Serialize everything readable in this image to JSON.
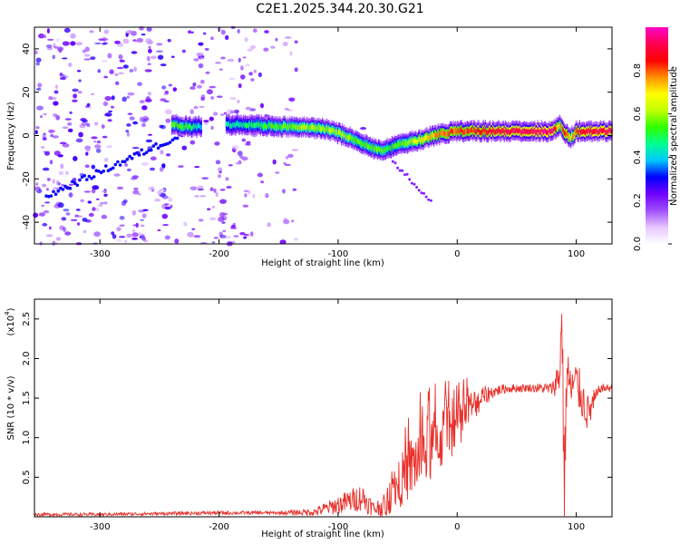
{
  "title": "C2E1.2025.344.20.30.G21",
  "chart_data": [
    {
      "type": "heatmap",
      "name": "spectrogram",
      "xlabel": "Height of straight line (km)",
      "ylabel": "Frequency (Hz)",
      "xlim": [
        -355,
        130
      ],
      "ylim": [
        -50,
        50
      ],
      "xticks": [
        -300,
        -200,
        -100,
        0,
        100
      ],
      "xtick_labels": [
        "-300",
        "-200",
        "-100",
        "0",
        "100"
      ],
      "yticks": [
        -40,
        -20,
        0,
        20,
        40
      ],
      "ytick_labels": [
        "-40",
        "-20",
        "0",
        "20",
        "40"
      ],
      "colorbar": {
        "label": "Normalized spectral amplitude",
        "range": [
          0,
          1
        ],
        "ticks": [
          0.0,
          0.2,
          0.4,
          0.6,
          0.8
        ],
        "tick_labels": [
          "0.0",
          "0.2",
          "0.4",
          "0.6",
          "0.8"
        ],
        "colors": [
          "#ffffff",
          "#e6c6ff",
          "#a050ff",
          "#7000ff",
          "#0000ff",
          "#00c8ff",
          "#00ff90",
          "#30ff00",
          "#c0ff00",
          "#ffff00",
          "#ff9000",
          "#ff0000",
          "#ff0050",
          "#ff00c8"
        ]
      },
      "ridge": {
        "x": [
          -240,
          -225,
          -210,
          -190,
          -170,
          -150,
          -130,
          -110,
          -95,
          -85,
          -75,
          -65,
          -58,
          -50,
          -40,
          -30,
          -20,
          -10,
          0,
          10,
          20,
          40,
          60,
          80,
          85,
          90,
          95,
          100,
          110,
          120,
          130
        ],
        "y": [
          5,
          4,
          4,
          5,
          5,
          4,
          4,
          3,
          0,
          -2,
          -5,
          -7,
          -6,
          -4,
          -3,
          -2,
          0,
          1,
          2,
          2,
          2,
          2,
          2,
          2,
          5,
          1,
          -1,
          2,
          2,
          2,
          2
        ],
        "amp": [
          0.55,
          0.5,
          0.35,
          0.45,
          0.5,
          0.55,
          0.6,
          0.6,
          0.6,
          0.55,
          0.55,
          0.55,
          0.5,
          0.55,
          0.6,
          0.7,
          0.75,
          0.8,
          0.8,
          0.82,
          0.85,
          0.9,
          0.92,
          0.95,
          0.7,
          0.85,
          0.7,
          0.85,
          0.9,
          0.92,
          0.95
        ]
      }
    },
    {
      "type": "line",
      "name": "snr",
      "xlabel": "Height of straight line (km)",
      "ylabel": "SNR (10 * v/v)",
      "exponent_label": "(x10",
      "exponent_power": "4",
      "exponent_close": ")",
      "xlim": [
        -355,
        130
      ],
      "ylim": [
        0,
        2.75
      ],
      "xticks": [
        -300,
        -200,
        -100,
        0,
        100
      ],
      "xtick_labels": [
        "-300",
        "-200",
        "-100",
        "0",
        "100"
      ],
      "yticks": [
        0.5,
        1.0,
        1.5,
        2.0,
        2.5
      ],
      "ytick_labels": [
        "0.5",
        "1.0",
        "1.5",
        "2.0",
        "2.5"
      ],
      "color": "#e8302a",
      "series": {
        "x": [
          -355,
          -300,
          -250,
          -200,
          -150,
          -120,
          -100,
          -90,
          -80,
          -70,
          -60,
          -50,
          -40,
          -30,
          -20,
          -10,
          0,
          10,
          20,
          30,
          40,
          60,
          80,
          86,
          88,
          90,
          92,
          95,
          100,
          110,
          120,
          130
        ],
        "y": [
          0.03,
          0.03,
          0.04,
          0.05,
          0.05,
          0.06,
          0.15,
          0.2,
          0.25,
          0.1,
          0.15,
          0.4,
          0.6,
          0.8,
          0.9,
          1.05,
          1.15,
          1.35,
          1.5,
          1.58,
          1.62,
          1.63,
          1.62,
          1.8,
          2.6,
          0.2,
          1.9,
          1.6,
          1.7,
          1.3,
          1.62,
          1.63
        ],
        "noise": [
          0.02,
          0.02,
          0.02,
          0.025,
          0.02,
          0.05,
          0.12,
          0.15,
          0.18,
          0.1,
          0.15,
          0.3,
          0.4,
          0.45,
          0.45,
          0.4,
          0.3,
          0.25,
          0.15,
          0.08,
          0.06,
          0.05,
          0.08,
          0.3,
          0.5,
          0.6,
          0.5,
          0.3,
          0.3,
          0.25,
          0.05,
          0.05
        ]
      }
    }
  ]
}
